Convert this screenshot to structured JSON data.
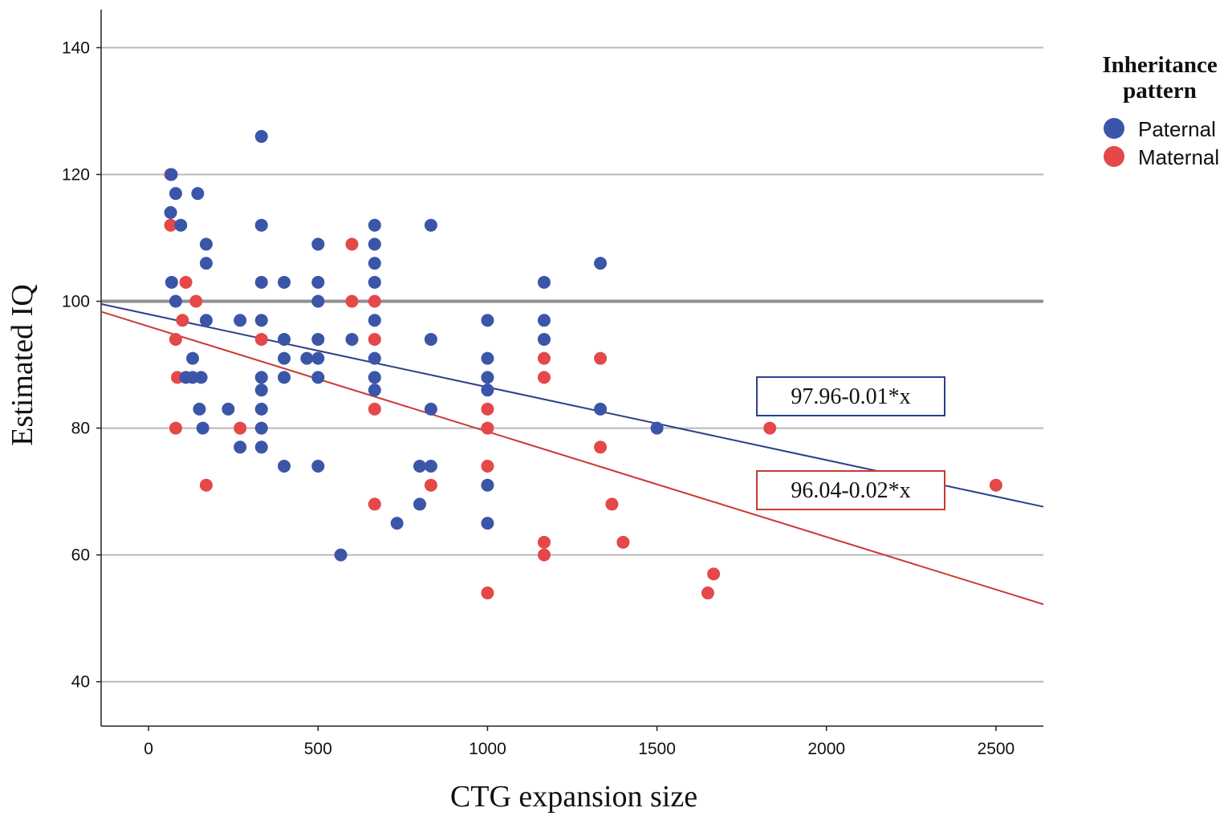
{
  "chart_data": {
    "type": "scatter",
    "xlabel": "CTG expansion size",
    "ylabel": "Estimated IQ",
    "xlim": [
      -140,
      2640
    ],
    "ylim": [
      33,
      146
    ],
    "xticks": [
      0,
      500,
      1000,
      1500,
      2000,
      2500
    ],
    "yticks": [
      40,
      60,
      80,
      100,
      120,
      140
    ],
    "grid": "horizontal",
    "reference_line_y": 100,
    "legend": {
      "title_line1": "Inheritance",
      "title_line2": "pattern",
      "position": "top-right"
    },
    "series": [
      {
        "name": "Paternal",
        "color": "#3b55a8",
        "fit": {
          "label": "97.96-0.01*x",
          "intercept": 97.96,
          "slope": -0.0115,
          "color": "#2b3f8c"
        },
        "points": [
          [
            67,
            120
          ],
          [
            80,
            117
          ],
          [
            65,
            114
          ],
          [
            95,
            112
          ],
          [
            68,
            103
          ],
          [
            80,
            100
          ],
          [
            110,
            88
          ],
          [
            130,
            91
          ],
          [
            130,
            88
          ],
          [
            145,
            117
          ],
          [
            150,
            83
          ],
          [
            155,
            88
          ],
          [
            160,
            80
          ],
          [
            170,
            109
          ],
          [
            170,
            106
          ],
          [
            170,
            97
          ],
          [
            235,
            83
          ],
          [
            270,
            97
          ],
          [
            270,
            77
          ],
          [
            333,
            126
          ],
          [
            333,
            112
          ],
          [
            333,
            103
          ],
          [
            333,
            97
          ],
          [
            333,
            88
          ],
          [
            333,
            86
          ],
          [
            333,
            83
          ],
          [
            333,
            80
          ],
          [
            333,
            77
          ],
          [
            400,
            103
          ],
          [
            400,
            94
          ],
          [
            400,
            91
          ],
          [
            400,
            88
          ],
          [
            400,
            74
          ],
          [
            467,
            91
          ],
          [
            500,
            109
          ],
          [
            500,
            103
          ],
          [
            500,
            100
          ],
          [
            500,
            94
          ],
          [
            500,
            91
          ],
          [
            500,
            88
          ],
          [
            500,
            74
          ],
          [
            567,
            60
          ],
          [
            600,
            94
          ],
          [
            667,
            112
          ],
          [
            667,
            109
          ],
          [
            667,
            106
          ],
          [
            667,
            103
          ],
          [
            667,
            97
          ],
          [
            667,
            91
          ],
          [
            667,
            88
          ],
          [
            667,
            86
          ],
          [
            733,
            65
          ],
          [
            800,
            74
          ],
          [
            800,
            68
          ],
          [
            833,
            112
          ],
          [
            833,
            94
          ],
          [
            833,
            83
          ],
          [
            833,
            74
          ],
          [
            1000,
            97
          ],
          [
            1000,
            91
          ],
          [
            1000,
            88
          ],
          [
            1000,
            86
          ],
          [
            1000,
            71
          ],
          [
            1000,
            65
          ],
          [
            1167,
            103
          ],
          [
            1167,
            97
          ],
          [
            1167,
            94
          ],
          [
            1333,
            106
          ],
          [
            1333,
            83
          ],
          [
            1500,
            80
          ]
        ]
      },
      {
        "name": "Maternal",
        "color": "#e44848",
        "fit": {
          "label": "96.04-0.02*x",
          "intercept": 96.04,
          "slope": -0.0166,
          "color": "#c83a32"
        },
        "points": [
          [
            65,
            120
          ],
          [
            65,
            112
          ],
          [
            80,
            94
          ],
          [
            80,
            80
          ],
          [
            85,
            88
          ],
          [
            100,
            97
          ],
          [
            110,
            103
          ],
          [
            140,
            100
          ],
          [
            170,
            71
          ],
          [
            270,
            80
          ],
          [
            333,
            94
          ],
          [
            600,
            109
          ],
          [
            600,
            100
          ],
          [
            667,
            100
          ],
          [
            667,
            94
          ],
          [
            667,
            83
          ],
          [
            667,
            68
          ],
          [
            833,
            71
          ],
          [
            1000,
            83
          ],
          [
            1000,
            80
          ],
          [
            1000,
            74
          ],
          [
            1000,
            54
          ],
          [
            1167,
            91
          ],
          [
            1167,
            88
          ],
          [
            1167,
            62
          ],
          [
            1167,
            60
          ],
          [
            1333,
            91
          ],
          [
            1333,
            77
          ],
          [
            1367,
            68
          ],
          [
            1400,
            62
          ],
          [
            1650,
            54
          ],
          [
            1667,
            57
          ],
          [
            1833,
            80
          ],
          [
            2500,
            71
          ]
        ]
      }
    ]
  }
}
